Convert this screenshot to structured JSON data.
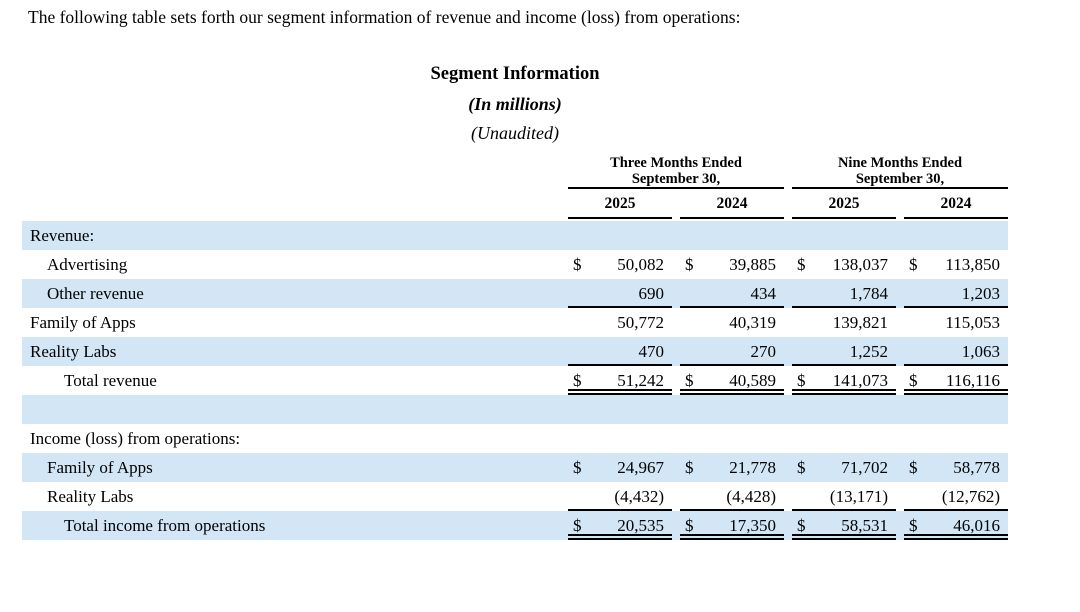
{
  "document": {
    "intro": "The following table sets forth our segment information of revenue and income (loss) from operations:",
    "title": "Segment Information",
    "units_note": "(In millions)",
    "audit_note": "(Unaudited)"
  },
  "table": {
    "column_groups": [
      {
        "line1": "Three Months Ended",
        "line2": "September 30,"
      },
      {
        "line1": "Nine Months Ended",
        "line2": "September 30,"
      }
    ],
    "years": [
      "2025",
      "2024",
      "2025",
      "2024"
    ],
    "currency_symbol": "$",
    "rows": [
      {
        "label": "Revenue:",
        "indent": 0,
        "shaded": true,
        "dollar": false,
        "values": null,
        "rule": "none"
      },
      {
        "label": "Advertising",
        "indent": 1,
        "shaded": false,
        "dollar": true,
        "values": [
          "50,082",
          "39,885",
          "138,037",
          "113,850"
        ],
        "rule": "none"
      },
      {
        "label": "Other revenue",
        "indent": 1,
        "shaded": true,
        "dollar": false,
        "values": [
          "690",
          "434",
          "1,784",
          "1,203"
        ],
        "rule": "single"
      },
      {
        "label": "Family of Apps",
        "indent": 0,
        "shaded": false,
        "dollar": false,
        "values": [
          "50,772",
          "40,319",
          "139,821",
          "115,053"
        ],
        "rule": "none"
      },
      {
        "label": "Reality Labs",
        "indent": 0,
        "shaded": true,
        "dollar": false,
        "values": [
          "470",
          "270",
          "1,252",
          "1,063"
        ],
        "rule": "single"
      },
      {
        "label": "Total revenue",
        "indent": 2,
        "shaded": false,
        "dollar": true,
        "values": [
          "51,242",
          "40,589",
          "141,073",
          "116,116"
        ],
        "rule": "double"
      },
      {
        "label": "",
        "indent": 0,
        "shaded": true,
        "dollar": false,
        "values": null,
        "rule": "none"
      },
      {
        "label": "Income (loss) from operations:",
        "indent": 0,
        "shaded": false,
        "dollar": false,
        "values": null,
        "rule": "none"
      },
      {
        "label": "Family of Apps",
        "indent": 1,
        "shaded": true,
        "dollar": true,
        "values": [
          "24,967",
          "21,778",
          "71,702",
          "58,778"
        ],
        "rule": "none"
      },
      {
        "label": "Reality Labs",
        "indent": 1,
        "shaded": false,
        "dollar": false,
        "values": [
          "(4,432)",
          "(4,428)",
          "(13,171)",
          "(12,762)"
        ],
        "rule": "single"
      },
      {
        "label": "Total income from operations",
        "indent": 2,
        "shaded": true,
        "dollar": true,
        "values": [
          "20,535",
          "17,350",
          "58,531",
          "46,016"
        ],
        "rule": "double"
      }
    ],
    "colors": {
      "row_shade": "#d2e6f6",
      "rule": "#000000",
      "text": "#000000"
    }
  }
}
